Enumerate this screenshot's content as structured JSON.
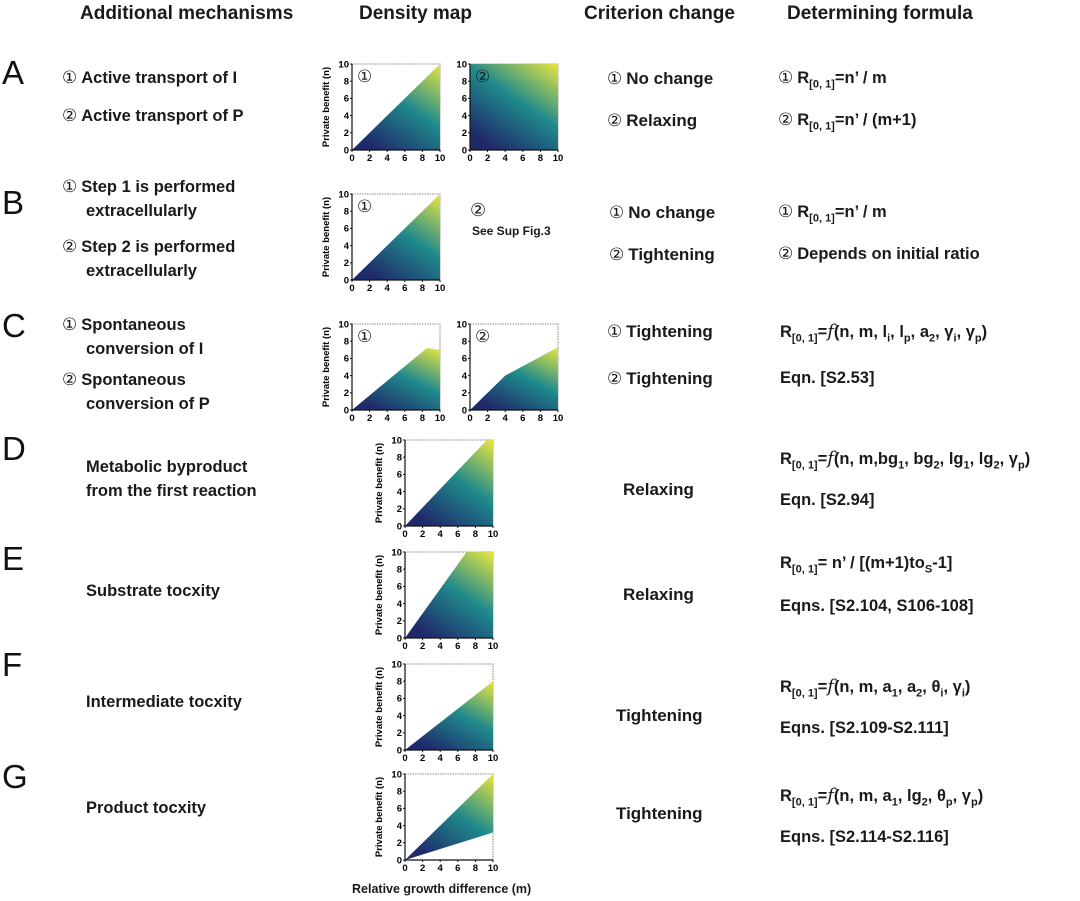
{
  "headers": {
    "mechanisms": "Additional mechanisms",
    "density": "Density map",
    "criterion": "Criterion change",
    "formula": "Determining formula"
  },
  "axis": {
    "ylabel": "Private benefit (n)",
    "xlabel": "Relative growth difference (m)"
  },
  "colors": {
    "low": "#1f2a6b",
    "mid": "#1f8a8c",
    "high": "#e8e640"
  },
  "rows": [
    {
      "letter": "A",
      "mechanisms": [
        {
          "num": "①",
          "lines": [
            "Active transport of I"
          ]
        },
        {
          "num": "②",
          "lines": [
            "Active transport of P"
          ]
        }
      ],
      "panels": [
        "①",
        "②"
      ],
      "criteria": [
        {
          "num": "①",
          "text": "No change"
        },
        {
          "num": "②",
          "text": "Relaxing"
        }
      ],
      "formulas": [
        {
          "num": "①",
          "pre": "R",
          "sub": "[0, 1]",
          "post": "=n’ / m"
        },
        {
          "num": "②",
          "pre": "R",
          "sub": "[0, 1]",
          "post": "=n’ / (m+1)"
        }
      ]
    },
    {
      "letter": "B",
      "mechanisms": [
        {
          "num": "①",
          "lines": [
            "Step 1 is performed",
            "extracellularly"
          ]
        },
        {
          "num": "②",
          "lines": [
            "Step 2 is performed",
            "extracellularly"
          ]
        }
      ],
      "panels": [
        "①"
      ],
      "panel2_num": "②",
      "panel2_note": "See Sup Fig.3",
      "criteria": [
        {
          "num": "①",
          "text": "No change"
        },
        {
          "num": "②",
          "text": "Tightening"
        }
      ],
      "formulas": [
        {
          "num": "①",
          "pre": "R",
          "sub": "[0, 1]",
          "post": "=n’ / m"
        },
        {
          "num": "②",
          "text": "Depends on initial ratio"
        }
      ]
    },
    {
      "letter": "C",
      "mechanisms": [
        {
          "num": "①",
          "lines": [
            "Spontaneous",
            "conversion of I"
          ]
        },
        {
          "num": "②",
          "lines": [
            "Spontaneous",
            "conversion of P"
          ]
        }
      ],
      "panels": [
        "①",
        "②"
      ],
      "criteria": [
        {
          "num": "①",
          "text": "Tightening"
        },
        {
          "num": "②",
          "text": "Tightening"
        }
      ],
      "formula_main": {
        "pre": "R",
        "sub": "[0, 1]",
        "eq": "=",
        "f": "f",
        "args": [
          {
            "t": "(n, m, l"
          },
          {
            "s": "i"
          },
          {
            "t": ", l"
          },
          {
            "s": "p"
          },
          {
            "t": ", a"
          },
          {
            "s": "2"
          },
          {
            "t": ", γ"
          },
          {
            "s": "i"
          },
          {
            "t": ", γ"
          },
          {
            "s": "p"
          },
          {
            "t": ")"
          }
        ]
      },
      "formula_eqn": "Eqn. [S2.53]"
    },
    {
      "letter": "D",
      "mechanisms": [
        {
          "lines": [
            "Metabolic byproduct",
            "from the first reaction"
          ]
        }
      ],
      "criteria": [
        {
          "text": "Relaxing"
        }
      ],
      "formula_main": {
        "pre": "R",
        "sub": "[0, 1]",
        "eq": "=",
        "f": "f",
        "args": [
          {
            "t": "(n, m,bg"
          },
          {
            "s": "1"
          },
          {
            "t": ", bg"
          },
          {
            "s": "2"
          },
          {
            "t": ", lg"
          },
          {
            "s": "1"
          },
          {
            "t": ", lg"
          },
          {
            "s": "2"
          },
          {
            "t": ", γ"
          },
          {
            "s": "p"
          },
          {
            "t": ")"
          }
        ]
      },
      "formula_eqn": "Eqn. [S2.94]"
    },
    {
      "letter": "E",
      "mechanisms": [
        {
          "lines": [
            "Substrate tocxity"
          ]
        }
      ],
      "criteria": [
        {
          "text": "Relaxing"
        }
      ],
      "formula_main": {
        "pre": "R",
        "sub": "[0, 1]",
        "eq": "",
        "f": "",
        "args": [
          {
            "t": "= n’ / [(m+1)to"
          },
          {
            "s": "S"
          },
          {
            "t": "-1]"
          }
        ]
      },
      "formula_eqn": "Eqns. [S2.104, S106-108]"
    },
    {
      "letter": "F",
      "mechanisms": [
        {
          "lines": [
            "Intermediate tocxity"
          ]
        }
      ],
      "criteria": [
        {
          "text": "Tightening"
        }
      ],
      "formula_main": {
        "pre": "R",
        "sub": "[0, 1]",
        "eq": "=",
        "f": "f",
        "args": [
          {
            "t": "(n, m, a"
          },
          {
            "s": "1"
          },
          {
            "t": ", a"
          },
          {
            "s": "2"
          },
          {
            "t": ", θ"
          },
          {
            "s": "i"
          },
          {
            "t": ",  γ"
          },
          {
            "s": "i"
          },
          {
            "t": ")"
          }
        ]
      },
      "formula_eqn": "Eqns. [S2.109-S2.111]"
    },
    {
      "letter": "G",
      "mechanisms": [
        {
          "lines": [
            "Product tocxity"
          ]
        }
      ],
      "criteria": [
        {
          "text": "Tightening"
        }
      ],
      "formula_main": {
        "pre": "R",
        "sub": "[0, 1]",
        "eq": "=",
        "f": "f",
        "args": [
          {
            "t": "(n, m, a"
          },
          {
            "s": "1"
          },
          {
            "t": ", lg"
          },
          {
            "s": "2"
          },
          {
            "t": ", θ"
          },
          {
            "s": "p"
          },
          {
            "t": ",  γ"
          },
          {
            "s": "p"
          },
          {
            "t": ")"
          }
        ]
      },
      "formula_eqn": "Eqns. [S2.114-S2.116]"
    }
  ],
  "chart_data": [
    {
      "type": "heatmap",
      "panel": "A-1",
      "xlim": [
        0,
        10
      ],
      "ylim": [
        0,
        10
      ],
      "xticks": [
        0,
        2,
        4,
        6,
        8,
        10
      ],
      "yticks": [
        0,
        2,
        4,
        6,
        8,
        10
      ],
      "boundary": [
        [
          0,
          0
        ],
        [
          10,
          10
        ]
      ],
      "ylabel": "Private benefit (n)",
      "xlabel": "",
      "label": "①"
    },
    {
      "type": "heatmap",
      "panel": "A-2",
      "xlim": [
        0,
        10
      ],
      "ylim": [
        0,
        10
      ],
      "xticks": [
        0,
        2,
        4,
        6,
        8,
        10
      ],
      "yticks": [
        0,
        2,
        4,
        6,
        8,
        10
      ],
      "boundary": [
        [
          0,
          10
        ],
        [
          10,
          10
        ]
      ],
      "ylabel": "",
      "xlabel": "",
      "label": "②"
    },
    {
      "type": "heatmap",
      "panel": "B-1",
      "xlim": [
        0,
        10
      ],
      "ylim": [
        0,
        10
      ],
      "xticks": [
        0,
        2,
        4,
        6,
        8,
        10
      ],
      "yticks": [
        0,
        2,
        4,
        6,
        8,
        10
      ],
      "boundary": [
        [
          0,
          0
        ],
        [
          10,
          10
        ]
      ],
      "ylabel": "Private benefit (n)",
      "xlabel": "",
      "label": "①"
    },
    {
      "type": "heatmap",
      "panel": "C-1",
      "xlim": [
        0,
        10
      ],
      "ylim": [
        0,
        10
      ],
      "xticks": [
        0,
        2,
        4,
        6,
        8,
        10
      ],
      "yticks": [
        0,
        2,
        4,
        6,
        8,
        10
      ],
      "boundary": [
        [
          0,
          0
        ],
        [
          8.5,
          7.2
        ],
        [
          10,
          7.0
        ]
      ],
      "ylabel": "Private benefit (n)",
      "xlabel": "",
      "label": "①"
    },
    {
      "type": "heatmap",
      "panel": "C-2",
      "xlim": [
        0,
        10
      ],
      "ylim": [
        0,
        10
      ],
      "xticks": [
        0,
        2,
        4,
        6,
        8,
        10
      ],
      "yticks": [
        0,
        2,
        4,
        6,
        8,
        10
      ],
      "boundary": [
        [
          0,
          0
        ],
        [
          4,
          4
        ],
        [
          10,
          7.3
        ]
      ],
      "ylabel": "",
      "xlabel": "",
      "label": "②"
    },
    {
      "type": "heatmap",
      "panel": "D",
      "xlim": [
        0,
        10
      ],
      "ylim": [
        0,
        10
      ],
      "xticks": [
        0,
        2,
        4,
        6,
        8,
        10
      ],
      "yticks": [
        0,
        2,
        4,
        6,
        8,
        10
      ],
      "boundary": [
        [
          0,
          0
        ],
        [
          9.3,
          10
        ]
      ],
      "ylabel": "Private benefit (n)",
      "xlabel": ""
    },
    {
      "type": "heatmap",
      "panel": "E",
      "xlim": [
        0,
        10
      ],
      "ylim": [
        0,
        10
      ],
      "xticks": [
        0,
        2,
        4,
        6,
        8,
        10
      ],
      "yticks": [
        0,
        2,
        4,
        6,
        8,
        10
      ],
      "boundary": [
        [
          0,
          0
        ],
        [
          7,
          10
        ]
      ],
      "ylabel": "Private benefit (n)",
      "xlabel": ""
    },
    {
      "type": "heatmap",
      "panel": "F",
      "xlim": [
        0,
        10
      ],
      "ylim": [
        0,
        10
      ],
      "xticks": [
        0,
        2,
        4,
        6,
        8,
        10
      ],
      "yticks": [
        0,
        2,
        4,
        6,
        8,
        10
      ],
      "boundary": [
        [
          0,
          0
        ],
        [
          10,
          8
        ]
      ],
      "ylabel": "Private benefit (n)",
      "xlabel": ""
    },
    {
      "type": "heatmap",
      "panel": "G",
      "xlim": [
        0,
        10
      ],
      "ylim": [
        0,
        10
      ],
      "xticks": [
        0,
        2,
        4,
        6,
        8,
        10
      ],
      "yticks": [
        0,
        2,
        4,
        6,
        8,
        10
      ],
      "boundary": [
        [
          0,
          0
        ],
        [
          10,
          10
        ]
      ],
      "lower_boundary": [
        [
          0,
          0
        ],
        [
          10,
          3.2
        ]
      ],
      "ylabel": "Private benefit (n)",
      "xlabel": "Relative growth difference (m)"
    }
  ]
}
